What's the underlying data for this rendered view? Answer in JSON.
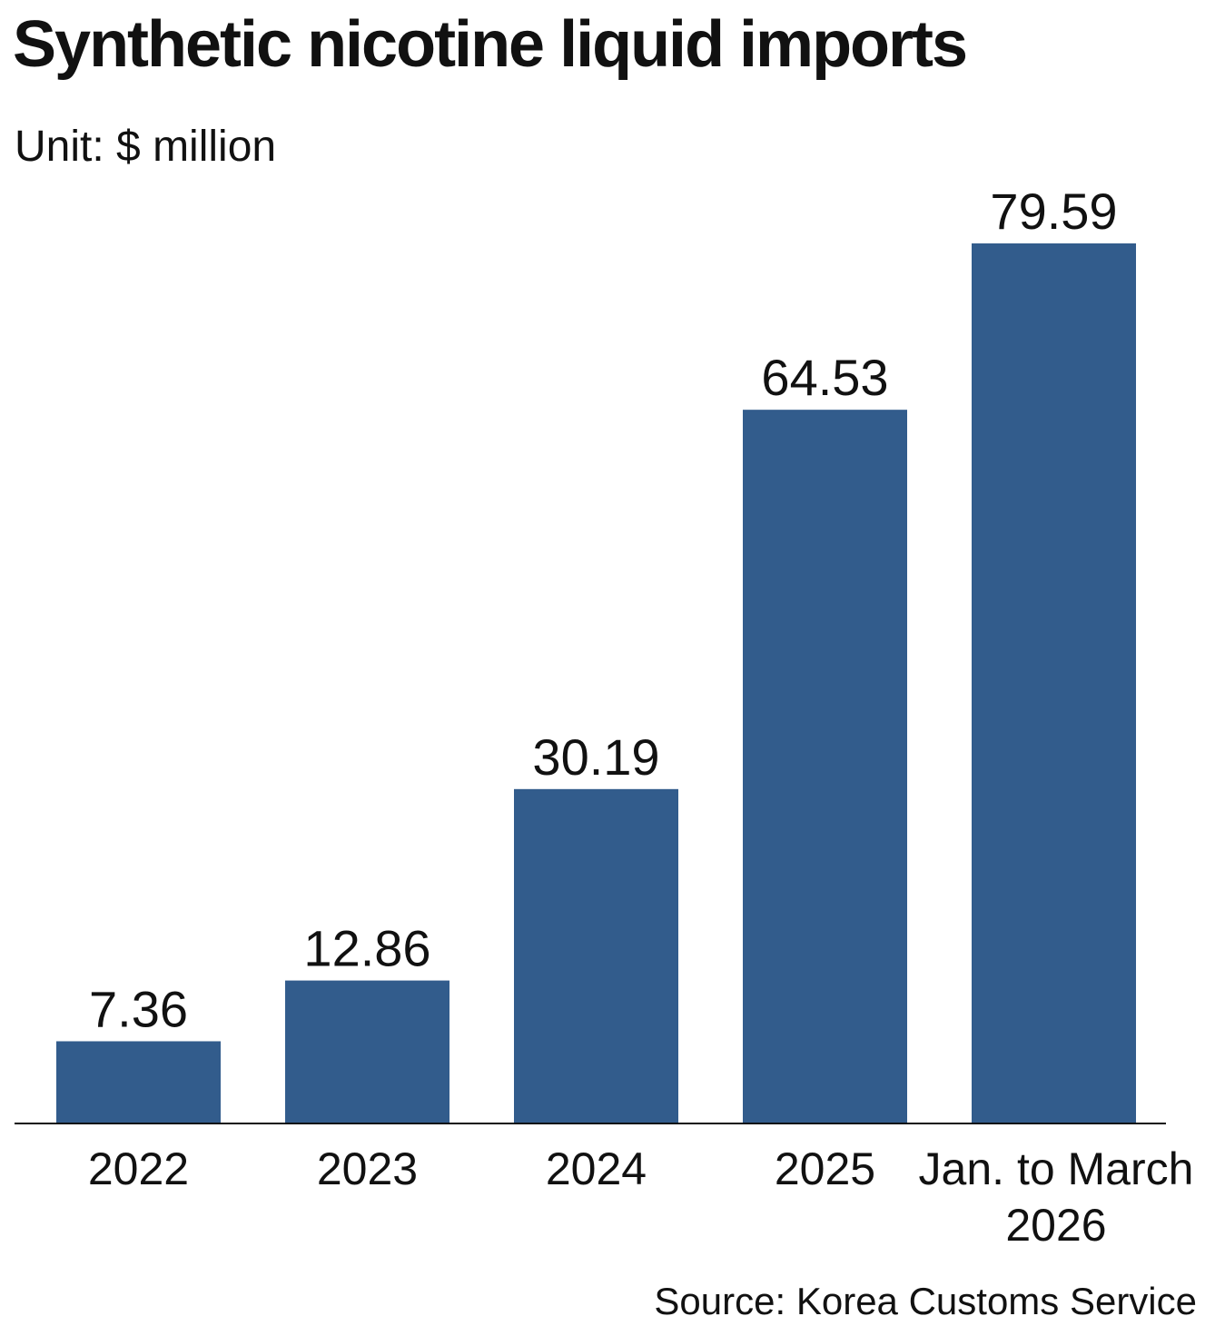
{
  "header": {
    "title": "Synthetic nicotine liquid imports",
    "subtitle": "Unit: $ million"
  },
  "footer": {
    "source": "Source: Korea Customs Service"
  },
  "colors": {
    "bar": "#325c8c",
    "axis": "#111111",
    "text": "#111111"
  },
  "chart_data": {
    "type": "bar",
    "title": "Synthetic nicotine liquid imports",
    "subtitle": "Unit: $ million",
    "categories": [
      "2022",
      "2023",
      "2024",
      "2025",
      "Jan. to March 2026"
    ],
    "category_lines": [
      [
        "2022"
      ],
      [
        "2023"
      ],
      [
        "2024"
      ],
      [
        "2025"
      ],
      [
        "Jan. to March",
        "2026"
      ]
    ],
    "values": [
      7.36,
      12.86,
      30.19,
      64.53,
      79.59
    ],
    "value_labels": [
      "7.36",
      "12.86",
      "30.19",
      "64.53",
      "79.59"
    ],
    "ylim": [
      0,
      79.59
    ],
    "grid": false,
    "legend": "none",
    "source": "Source: Korea Customs Service"
  }
}
